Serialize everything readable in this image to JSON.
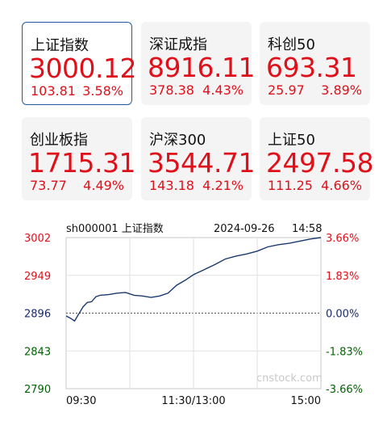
{
  "indices": [
    {
      "name": "上证指数",
      "price": "3000.12",
      "change": "103.81",
      "pct": "3.58%",
      "selected": true
    },
    {
      "name": "深证成指",
      "price": "8916.11",
      "change": "378.38",
      "pct": "4.43%",
      "selected": false
    },
    {
      "name": "科创50",
      "price": "693.31",
      "change": "25.97",
      "pct": "3.89%",
      "selected": false
    },
    {
      "name": "创业板指",
      "price": "1715.31",
      "change": "73.77",
      "pct": "4.49%",
      "selected": false
    },
    {
      "name": "沪深300",
      "price": "3544.71",
      "change": "143.18",
      "pct": "4.21%",
      "selected": false
    },
    {
      "name": "上证50",
      "price": "2497.58",
      "change": "111.25",
      "pct": "4.66%",
      "selected": false
    }
  ],
  "chart": {
    "code_label": "sh000001 上证指数",
    "date": "2024-09-26",
    "time": "14:58",
    "watermark": "cnstock.com",
    "colors": {
      "up": "#e0101a",
      "down": "#006400",
      "base": "#1a2a6c",
      "line": "#1a3a6e"
    }
  },
  "chart_data": {
    "type": "line",
    "y_left_ticks": [
      "3002",
      "2949",
      "2896",
      "2843",
      "2790"
    ],
    "y_right_ticks": [
      "3.66%",
      "1.83%",
      "0.00%",
      "-1.83%",
      "-3.66%"
    ],
    "x_ticks": [
      "09:30",
      "11:30/13:00",
      "15:00"
    ],
    "ylim": [
      2790,
      3002
    ],
    "baseline": 2896,
    "x": [
      0,
      4,
      8,
      12,
      16,
      20,
      24,
      28,
      32,
      40,
      48,
      56,
      64,
      72,
      80,
      88,
      96,
      104,
      112,
      120,
      130,
      140,
      150,
      160,
      170,
      180,
      190,
      200,
      210,
      220,
      230,
      240
    ],
    "values": [
      2892,
      2889,
      2885,
      2895,
      2905,
      2911,
      2912,
      2919,
      2921,
      2922,
      2924,
      2925,
      2921,
      2920,
      2918,
      2920,
      2924,
      2935,
      2942,
      2950,
      2957,
      2964,
      2972,
      2976,
      2979,
      2983,
      2989,
      2992,
      2994,
      2997,
      3000,
      3002
    ]
  }
}
